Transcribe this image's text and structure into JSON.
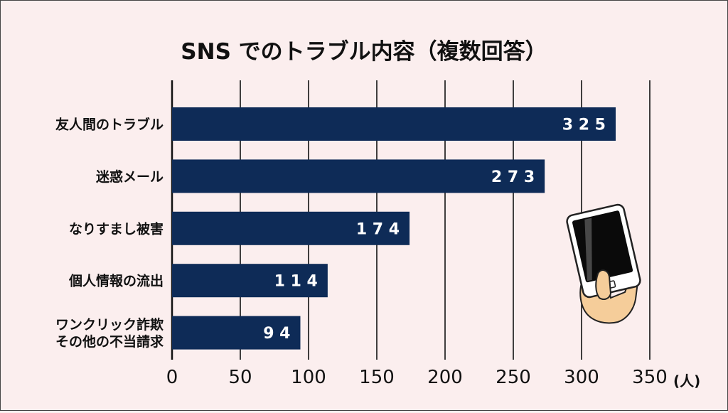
{
  "chart_data": {
    "type": "bar",
    "orientation": "horizontal",
    "title": "SNS でのトラブル内容（複数回答）",
    "categories": [
      [
        "友人間のトラブル"
      ],
      [
        "迷惑メール"
      ],
      [
        "なりすまし被害"
      ],
      [
        "個人情報の流出"
      ],
      [
        "ワンクリック詐欺",
        "その他の不当請求"
      ]
    ],
    "values": [
      325,
      273,
      174,
      114,
      94
    ],
    "value_labels": [
      "3 2 5",
      "2 7 3",
      "1 7 4",
      "1 1 4",
      "9 4"
    ],
    "xlim": [
      0,
      350
    ],
    "x_ticks": [
      0,
      50,
      100,
      150,
      200,
      250,
      300,
      350
    ],
    "unit_label": "(人)",
    "grid": "vertical",
    "colors": {
      "bar": "#0e2b57",
      "background": "#fbeeee",
      "grid": "#111111",
      "value_text": "#ffffff",
      "text": "#111111"
    }
  },
  "decoration": {
    "icon": "hand-holding-smartphone-icon"
  }
}
